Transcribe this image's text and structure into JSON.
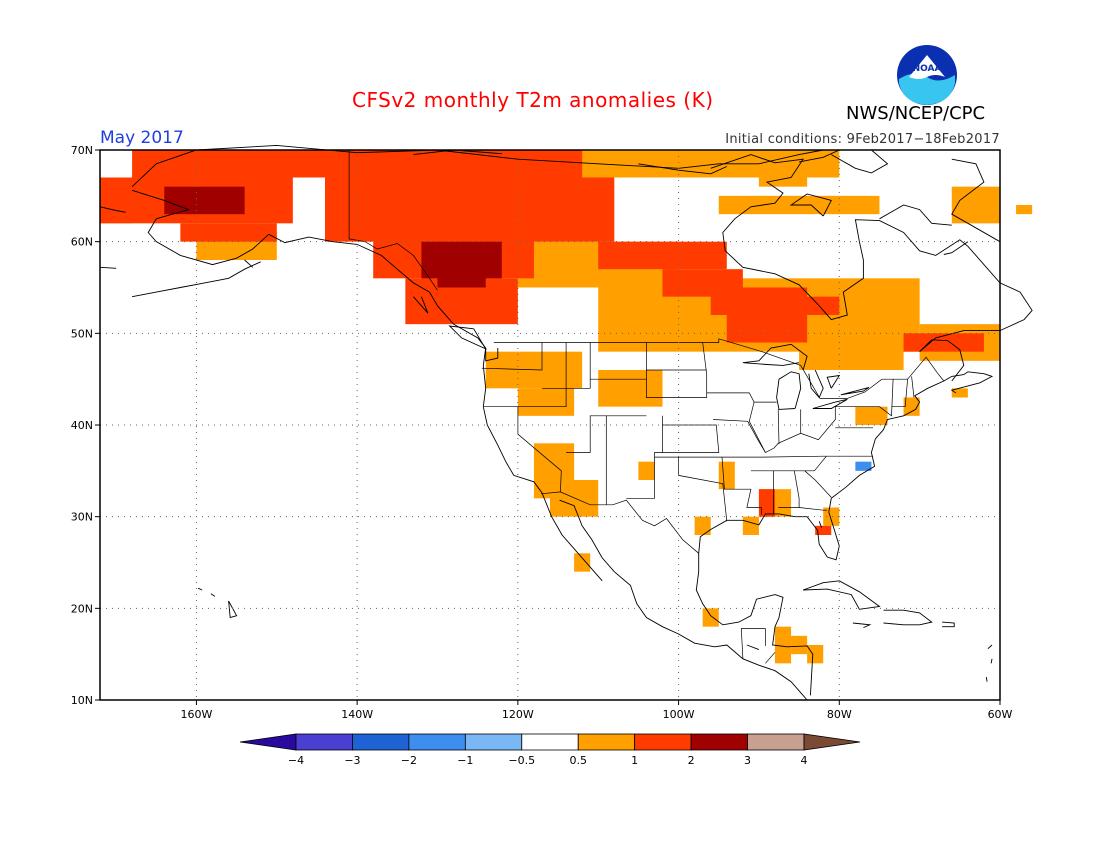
{
  "header": {
    "title": "CFSv2 monthly T2m anomalies (K)",
    "month": "May 2017",
    "initial_conditions": "Initial conditions: 9Feb2017−18Feb2017",
    "agency": "NWS/NCEP/CPC",
    "logo_text": "NOAA"
  },
  "map": {
    "lon_range": [
      -172,
      -60
    ],
    "lat_range": [
      10,
      70
    ],
    "lat_ticks": [
      {
        "value": 70,
        "label": "70N"
      },
      {
        "value": 60,
        "label": "60N"
      },
      {
        "value": 50,
        "label": "50N"
      },
      {
        "value": 40,
        "label": "40N"
      },
      {
        "value": 30,
        "label": "30N"
      },
      {
        "value": 20,
        "label": "20N"
      },
      {
        "value": 10,
        "label": "10N"
      }
    ],
    "lon_ticks": [
      {
        "value": -160,
        "label": "160W"
      },
      {
        "value": -140,
        "label": "140W"
      },
      {
        "value": -120,
        "label": "120W"
      },
      {
        "value": -100,
        "label": "100W"
      },
      {
        "value": -80,
        "label": "80W"
      },
      {
        "value": -60,
        "label": "60W"
      }
    ],
    "grid": "dotted"
  },
  "colorbar": {
    "bins": [
      {
        "range": "< -4",
        "color": "#2a0a9e"
      },
      {
        "range": "-4 to -3",
        "color": "#4b3fd1"
      },
      {
        "range": "-3 to -2",
        "color": "#1f62d4"
      },
      {
        "range": "-2 to -1",
        "color": "#3e8ef0"
      },
      {
        "range": "-1 to -0.5",
        "color": "#79b8f5"
      },
      {
        "range": "-0.5 to 0.5",
        "color": "#ffffff"
      },
      {
        "range": "0.5 to 1",
        "color": "#ff9f00"
      },
      {
        "range": "1 to 2",
        "color": "#ff3b00"
      },
      {
        "range": "2 to 3",
        "color": "#a00000"
      },
      {
        "range": "3 to 4",
        "color": "#c8a090"
      },
      {
        "range": "> 4",
        "color": "#7a4a35"
      }
    ],
    "tick_labels": [
      "−4",
      "−3",
      "−2",
      "−1",
      "−0.5",
      "0.5",
      "1",
      "2",
      "3",
      "4"
    ]
  },
  "chart_data": {
    "type": "heatmap",
    "title": "CFSv2 monthly T2m anomalies (K)",
    "valid_month": "May 2017",
    "units": "K",
    "anomaly_regions": [
      {
        "category": "0.5 to 1",
        "color": "#ff9f00",
        "cells": [
          [
            -168,
            70,
            -112,
            67
          ],
          [
            -114,
            70,
            -80,
            67
          ],
          [
            -95,
            65,
            -75,
            63
          ],
          [
            -172,
            64,
            -168,
            62
          ],
          [
            -160,
            61,
            -150,
            58
          ],
          [
            -120,
            60,
            -100,
            55
          ],
          [
            -110,
            56,
            -70,
            48
          ],
          [
            -70,
            51,
            -60,
            47
          ],
          [
            -85,
            50,
            -72,
            46
          ],
          [
            -124,
            48,
            -112,
            44
          ],
          [
            -120,
            44,
            -113,
            41
          ],
          [
            -118,
            38,
            -113,
            32
          ],
          [
            -116,
            34,
            -110,
            30
          ],
          [
            -113,
            26,
            -111,
            24
          ],
          [
            -90,
            33,
            -86,
            30
          ],
          [
            -92,
            30,
            -90,
            28
          ],
          [
            -78,
            42,
            -74,
            40
          ],
          [
            -72,
            43,
            -70,
            41
          ],
          [
            -66,
            44,
            -64,
            43
          ],
          [
            -98,
            30,
            -96,
            28
          ],
          [
            -82,
            31,
            -80,
            29
          ],
          [
            -88,
            18,
            -86,
            14
          ],
          [
            -84,
            16,
            -82,
            14
          ],
          [
            -86,
            17,
            -84,
            15
          ],
          [
            -97,
            20,
            -95,
            18
          ],
          [
            -110,
            46,
            -102,
            42
          ],
          [
            -90,
            68,
            -84,
            66
          ],
          [
            -66,
            66,
            -60,
            62
          ],
          [
            -58,
            64,
            -56,
            63
          ],
          [
            -105,
            36,
            -103,
            34
          ],
          [
            -95,
            36,
            -93,
            33
          ]
        ]
      },
      {
        "category": "1 to 2",
        "color": "#ff3b00",
        "cells": [
          [
            -168,
            70,
            -142,
            67
          ],
          [
            -172,
            67,
            -148,
            62
          ],
          [
            -162,
            62,
            -150,
            60
          ],
          [
            -142,
            70,
            -112,
            67
          ],
          [
            -144,
            67,
            -108,
            60
          ],
          [
            -138,
            62,
            -118,
            56
          ],
          [
            -134,
            56,
            -120,
            51
          ],
          [
            -110,
            60,
            -94,
            57
          ],
          [
            -102,
            57,
            -92,
            54
          ],
          [
            -96,
            55,
            -84,
            52
          ],
          [
            -92,
            54,
            -80,
            52
          ],
          [
            -94,
            52,
            -84,
            49
          ],
          [
            -72,
            50,
            -62,
            48
          ],
          [
            -90,
            33,
            -88,
            30
          ],
          [
            -83,
            29,
            -81,
            28
          ]
        ]
      },
      {
        "category": "2 to 3",
        "color": "#a00000",
        "cells": [
          [
            -164,
            66,
            -154,
            63
          ],
          [
            -132,
            60,
            -122,
            56
          ],
          [
            -130,
            57,
            -124,
            55
          ]
        ]
      },
      {
        "category": "-2 to -1",
        "color": "#3e8ef0",
        "cells": [
          [
            -78,
            36,
            -76,
            35
          ]
        ]
      }
    ],
    "xlim": [
      -172,
      -60
    ],
    "ylim": [
      10,
      70
    ]
  }
}
